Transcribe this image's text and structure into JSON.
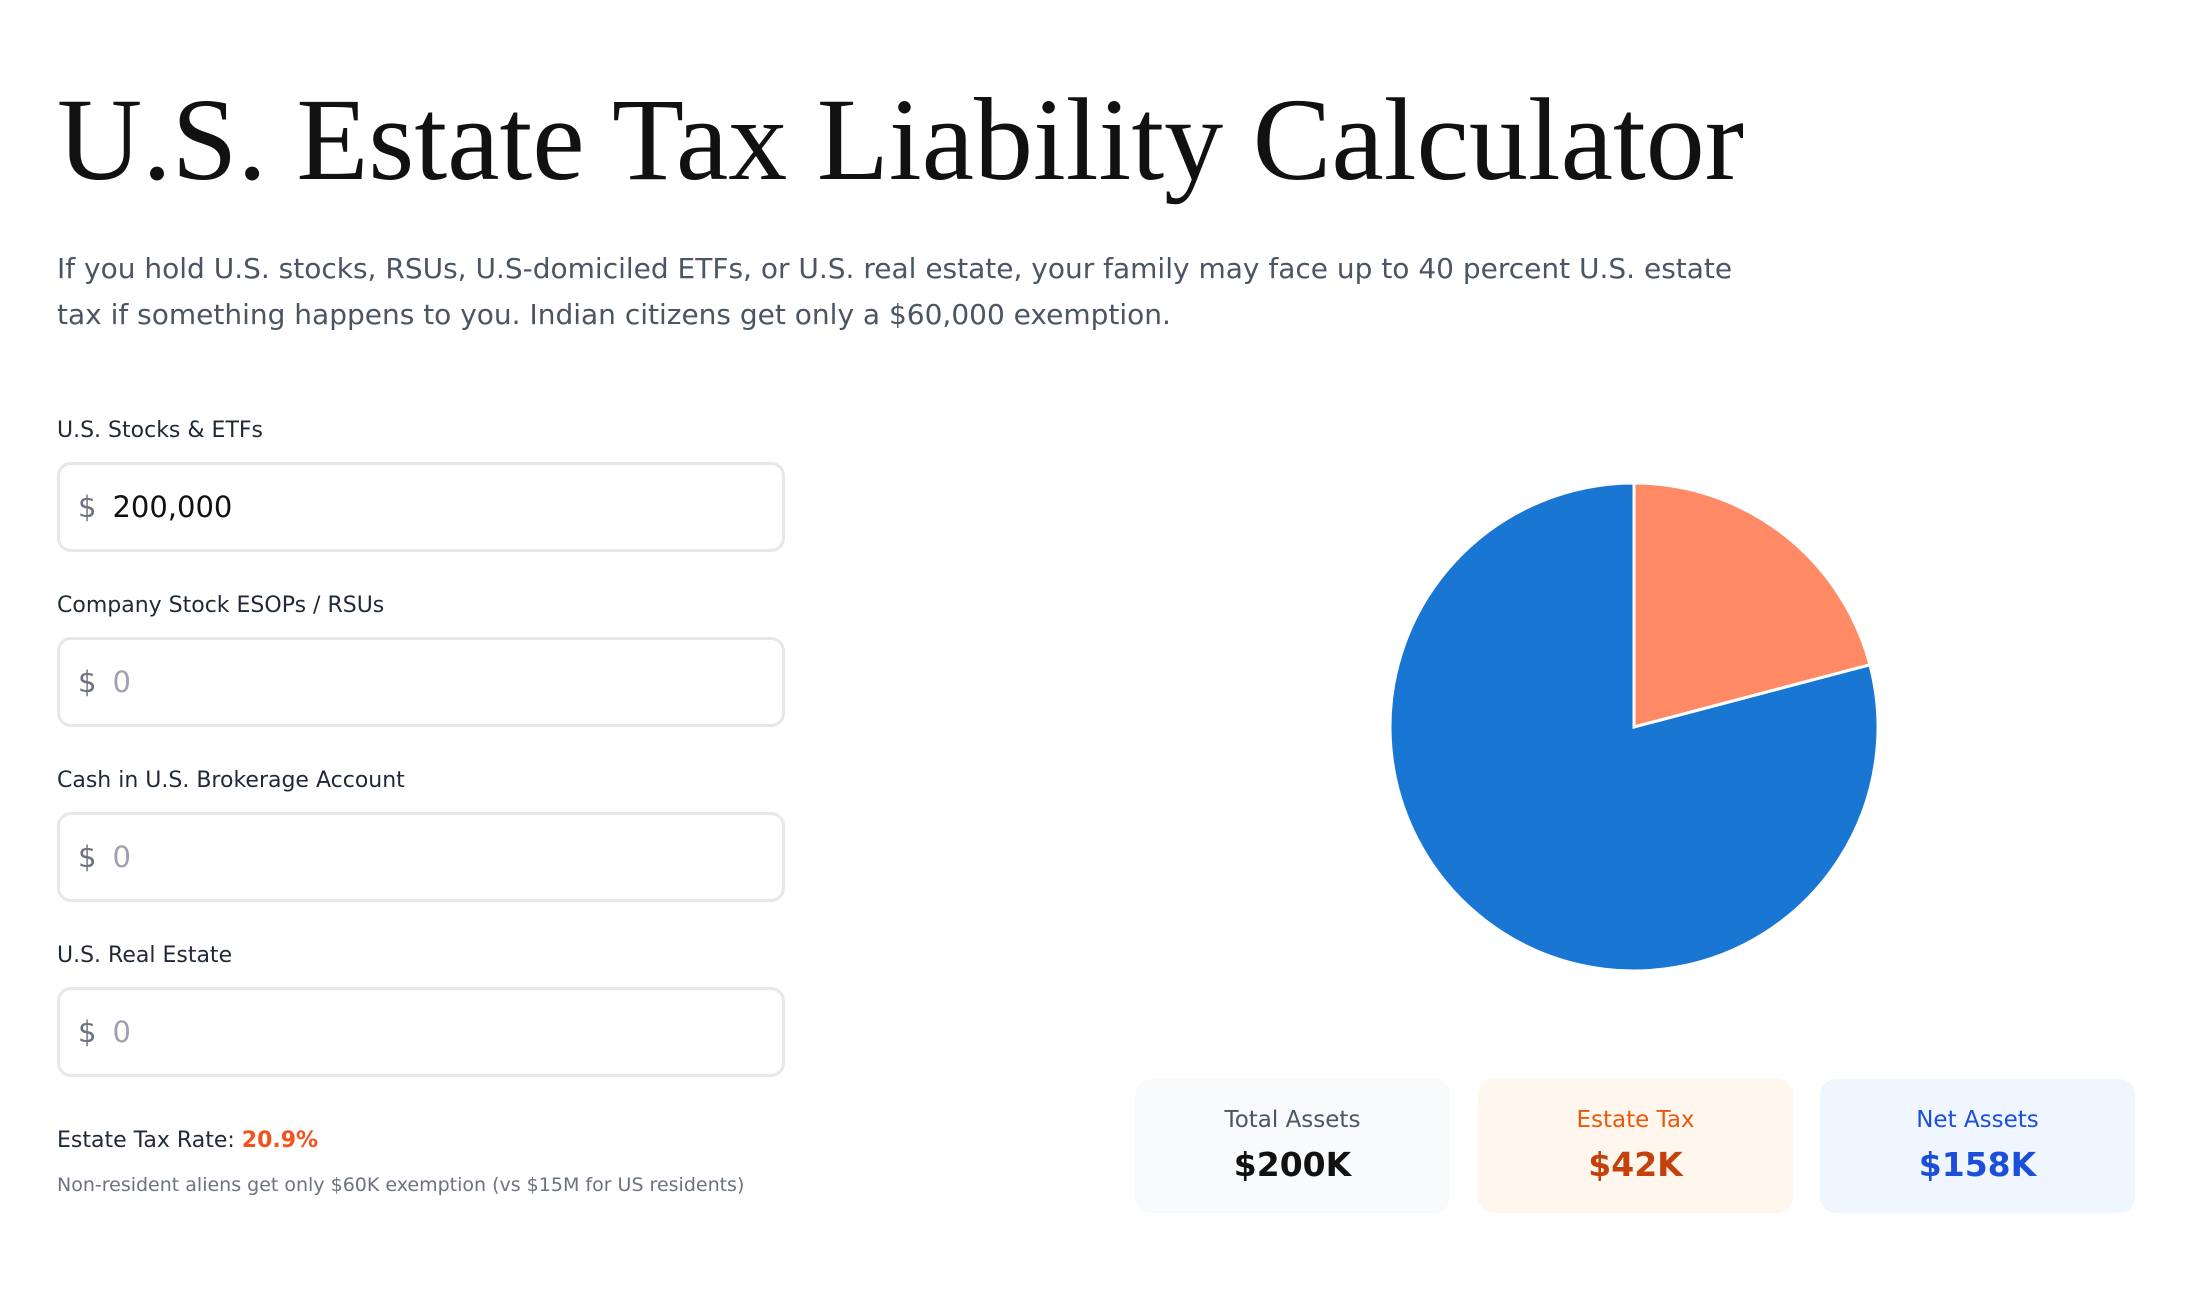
{
  "header": {
    "title": "U.S. Estate Tax Liability Calculator",
    "subtitle": "If you hold U.S. stocks, RSUs, U.S-domiciled ETFs, or U.S. real estate, your family may face up to 40 percent U.S. estate tax if something happens to you. Indian citizens get only a $60,000 exemption."
  },
  "form": {
    "fields": [
      {
        "label": "U.S. Stocks & ETFs",
        "currency": "$",
        "value": "200,000"
      },
      {
        "label": "Company Stock ESOPs / RSUs",
        "currency": "$",
        "placeholder": "0"
      },
      {
        "label": "Cash in U.S. Brokerage Account",
        "currency": "$",
        "placeholder": "0"
      },
      {
        "label": "U.S. Real Estate",
        "currency": "$",
        "placeholder": "0"
      }
    ],
    "rate_label": "Estate Tax Rate:",
    "rate_value": "20.9%",
    "note": "Non-resident aliens get only $60K exemption (vs $15M for US residents)"
  },
  "summary": {
    "total_label": "Total Assets",
    "total_value": "$200K"
  },
  "chart_data": {
    "type": "pie",
    "categories": [
      "Estate Tax",
      "Net Assets"
    ],
    "values": [
      41800,
      158200
    ],
    "value_labels": [
      "$42K",
      "$158K"
    ],
    "colors": [
      "#ff8a65",
      "#1976d2"
    ]
  }
}
